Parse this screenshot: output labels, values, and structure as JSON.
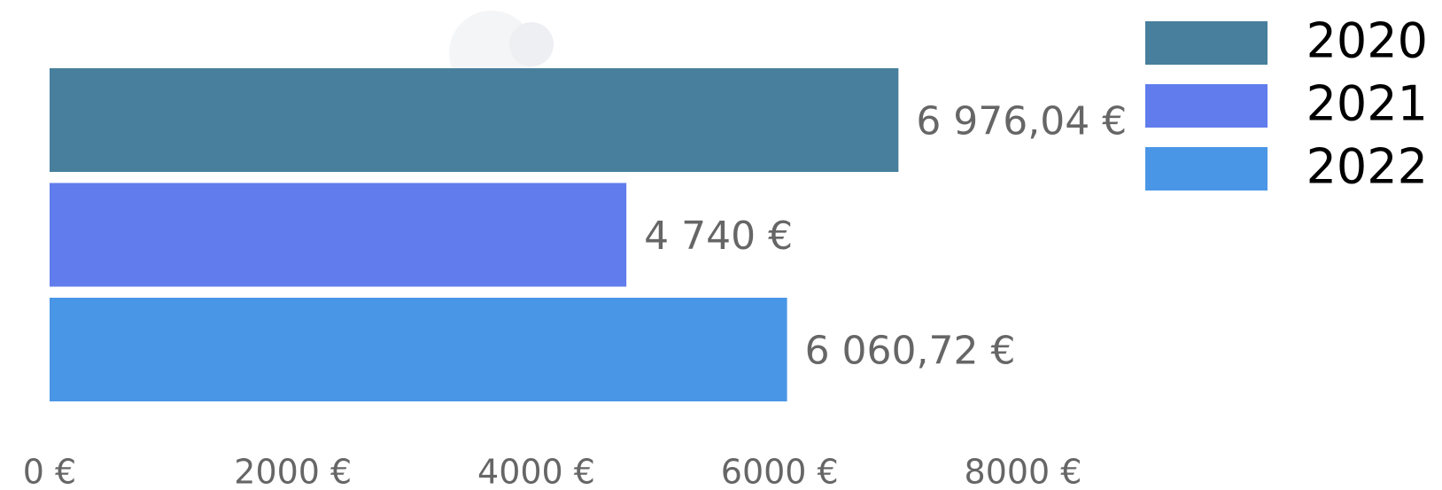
{
  "chart_data": {
    "type": "hbar",
    "categories": [
      null
    ],
    "series": [
      {
        "name": "2020",
        "color": "#477f9c",
        "values": [
          6976.04
        ],
        "value_labels": [
          "6 976,04 €"
        ]
      },
      {
        "name": "2021",
        "color": "#607ced",
        "values": [
          4740
        ],
        "value_labels": [
          "4 740 €"
        ]
      },
      {
        "name": "2022",
        "color": "#4a96e6",
        "values": [
          6060.72
        ],
        "value_labels": [
          "6 060,72 €"
        ]
      }
    ],
    "xlim": [
      0,
      8000
    ],
    "xticks": [
      {
        "value": 0,
        "label": "0 €"
      },
      {
        "value": 2000,
        "label": "2000 €"
      },
      {
        "value": 4000,
        "label": "4000 €"
      },
      {
        "value": 6000,
        "label": "6000 €"
      },
      {
        "value": 8000,
        "label": "8000 €"
      }
    ],
    "legend": "top-right"
  }
}
